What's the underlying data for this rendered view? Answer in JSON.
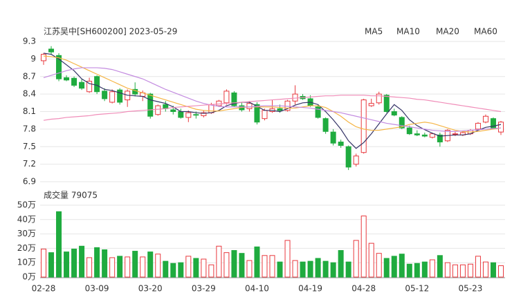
{
  "chart_data": [
    {
      "type": "candlestick",
      "title": "江苏吴中[SH600200] 2023-05-29",
      "categories": [
        "02-28",
        null,
        null,
        null,
        null,
        null,
        null,
        "03-09",
        null,
        null,
        null,
        null,
        null,
        null,
        "03-20",
        null,
        null,
        null,
        null,
        null,
        null,
        "03-29",
        null,
        null,
        null,
        null,
        null,
        null,
        "04-10",
        null,
        null,
        null,
        null,
        null,
        null,
        "04-19",
        null,
        null,
        null,
        null,
        null,
        null,
        "04-28",
        null,
        null,
        null,
        null,
        null,
        null,
        "05-12",
        null,
        null,
        null,
        null,
        null,
        null,
        "05-23",
        null,
        null,
        null,
        null
      ],
      "open": [
        8.97,
        9.17,
        9.06,
        8.68,
        8.67,
        8.6,
        8.44,
        8.7,
        8.45,
        8.26,
        8.47,
        8.3,
        8.48,
        8.36,
        8.4,
        8.05,
        8.22,
        8.13,
        8.1,
        8.0,
        8.05,
        8.03,
        8.08,
        8.2,
        8.25,
        8.42,
        8.2,
        8.15,
        8.22,
        7.98,
        8.1,
        8.15,
        8.12,
        8.28,
        8.36,
        8.32,
        8.18,
        7.98,
        7.75,
        7.58,
        7.5,
        7.2,
        7.4,
        8.2,
        8.25,
        8.38,
        8.1,
        8.0,
        7.82,
        7.72,
        7.7,
        7.66,
        7.7,
        7.6,
        7.72,
        7.7,
        7.72,
        7.8,
        7.92,
        7.98,
        7.75
      ],
      "high": [
        9.1,
        9.22,
        9.1,
        8.72,
        8.7,
        8.65,
        8.68,
        8.72,
        8.5,
        8.48,
        8.5,
        8.48,
        8.6,
        8.46,
        8.42,
        8.22,
        8.28,
        8.2,
        8.15,
        8.12,
        8.1,
        8.12,
        8.25,
        8.3,
        8.48,
        8.45,
        8.26,
        8.28,
        8.26,
        8.15,
        8.3,
        8.22,
        8.3,
        8.55,
        8.4,
        8.38,
        8.22,
        8.0,
        7.8,
        7.62,
        7.52,
        7.38,
        8.32,
        8.32,
        8.44,
        8.4,
        8.15,
        8.02,
        7.86,
        7.78,
        7.74,
        7.74,
        7.74,
        7.8,
        7.76,
        7.76,
        7.8,
        7.92,
        8.05,
        8.0,
        7.94
      ],
      "low": [
        8.9,
        9.08,
        8.62,
        8.62,
        8.52,
        8.47,
        8.42,
        8.4,
        8.28,
        8.24,
        8.22,
        8.18,
        8.36,
        8.28,
        7.98,
        8.03,
        8.1,
        8.05,
        7.98,
        7.92,
        7.98,
        8.0,
        8.06,
        8.18,
        8.22,
        8.18,
        8.1,
        8.1,
        7.88,
        7.95,
        8.08,
        8.08,
        8.1,
        8.22,
        8.3,
        8.18,
        7.98,
        7.72,
        7.52,
        7.48,
        7.1,
        7.16,
        7.38,
        8.18,
        8.22,
        8.08,
        8.02,
        7.8,
        7.7,
        7.68,
        7.66,
        7.64,
        7.5,
        7.58,
        7.68,
        7.68,
        7.7,
        7.78,
        7.9,
        7.8,
        7.7
      ],
      "close": [
        9.08,
        9.12,
        8.66,
        8.64,
        8.55,
        8.5,
        8.62,
        8.44,
        8.32,
        8.44,
        8.26,
        8.45,
        8.4,
        8.42,
        8.02,
        8.2,
        8.15,
        8.1,
        8.0,
        8.08,
        8.04,
        8.08,
        8.22,
        8.28,
        8.45,
        8.2,
        8.13,
        8.24,
        7.92,
        8.12,
        8.15,
        8.12,
        8.28,
        8.4,
        8.32,
        8.2,
        8.0,
        7.76,
        7.56,
        7.52,
        7.15,
        7.34,
        8.3,
        8.24,
        8.4,
        8.1,
        8.04,
        7.82,
        7.72,
        7.7,
        7.68,
        7.72,
        7.58,
        7.78,
        7.72,
        7.74,
        7.78,
        7.9,
        8.02,
        7.82,
        7.92
      ],
      "up_color": "#e8383d",
      "down_color": "#1fab3f",
      "series": [
        {
          "name": "MA5",
          "color": "#333366",
          "values": [
            9.1,
            9.08,
            9.0,
            8.9,
            8.8,
            8.66,
            8.58,
            8.55,
            8.48,
            8.46,
            8.42,
            8.38,
            8.37,
            8.36,
            8.3,
            8.27,
            8.24,
            8.18,
            8.1,
            8.1,
            8.08,
            8.07,
            8.08,
            8.12,
            8.2,
            8.24,
            8.26,
            8.26,
            8.19,
            8.12,
            8.12,
            8.1,
            8.15,
            8.21,
            8.25,
            8.26,
            8.22,
            8.1,
            7.96,
            7.8,
            7.6,
            7.47,
            7.57,
            7.72,
            7.89,
            8.06,
            8.22,
            8.12,
            7.96,
            7.86,
            7.79,
            7.73,
            7.68,
            7.69,
            7.7,
            7.7,
            7.72,
            7.78,
            7.83,
            7.85,
            7.88
          ]
        },
        {
          "name": "MA10",
          "color": "#f5b545",
          "values": [
            9.05,
            9.04,
            9.02,
            8.98,
            8.92,
            8.86,
            8.8,
            8.74,
            8.68,
            8.62,
            8.56,
            8.5,
            8.46,
            8.42,
            8.38,
            8.34,
            8.3,
            8.26,
            8.22,
            8.18,
            8.14,
            8.12,
            8.11,
            8.11,
            8.13,
            8.15,
            8.17,
            8.18,
            8.18,
            8.18,
            8.18,
            8.17,
            8.16,
            8.16,
            8.18,
            8.2,
            8.2,
            8.17,
            8.1,
            8.02,
            7.92,
            7.84,
            7.8,
            7.78,
            7.78,
            7.8,
            7.82,
            7.84,
            7.88,
            7.9,
            7.92,
            7.9,
            7.86,
            7.82,
            7.78,
            7.76,
            7.75,
            7.76,
            7.78,
            7.8,
            7.82
          ]
        },
        {
          "name": "MA20",
          "color": "#c38be0",
          "values": [
            8.68,
            8.72,
            8.76,
            8.8,
            8.83,
            8.85,
            8.85,
            8.85,
            8.84,
            8.82,
            8.78,
            8.74,
            8.7,
            8.66,
            8.6,
            8.54,
            8.48,
            8.43,
            8.38,
            8.33,
            8.28,
            8.24,
            8.21,
            8.19,
            8.18,
            8.18,
            8.18,
            8.18,
            8.19,
            8.2,
            8.2,
            8.2,
            8.19,
            8.18,
            8.17,
            8.16,
            8.14,
            8.12,
            8.1,
            8.08,
            8.05,
            8.02,
            7.99,
            7.96,
            7.93,
            7.9,
            7.88,
            7.86,
            7.84,
            7.82,
            7.8,
            7.78,
            7.77,
            7.76,
            7.76,
            7.77,
            7.78,
            7.79,
            7.8,
            7.81,
            7.82
          ]
        },
        {
          "name": "MA60",
          "color": "#f08cb8",
          "values": [
            7.95,
            7.97,
            7.98,
            8.0,
            8.01,
            8.02,
            8.03,
            8.05,
            8.06,
            8.07,
            8.08,
            8.1,
            8.11,
            8.12,
            8.13,
            8.14,
            8.15,
            8.17,
            8.18,
            8.19,
            8.2,
            8.21,
            8.22,
            8.23,
            8.24,
            8.25,
            8.26,
            8.27,
            8.28,
            8.29,
            8.3,
            8.31,
            8.32,
            8.33,
            8.34,
            8.35,
            8.36,
            8.37,
            8.37,
            8.38,
            8.38,
            8.38,
            8.38,
            8.37,
            8.37,
            8.36,
            8.35,
            8.34,
            8.33,
            8.31,
            8.3,
            8.28,
            8.26,
            8.24,
            8.22,
            8.2,
            8.18,
            8.16,
            8.14,
            8.12,
            8.1
          ]
        }
      ],
      "ylim": [
        6.9,
        9.3
      ],
      "yticks": [
        9.3,
        9,
        8.7,
        8.4,
        8.1,
        7.8,
        7.5,
        7.2,
        6.9
      ],
      "grid": true
    },
    {
      "type": "bar",
      "title": "成交量 79075",
      "values": [
        19.5,
        17,
        45.5,
        17.5,
        19.5,
        21.5,
        13.5,
        20.5,
        19,
        13.5,
        14.5,
        14,
        18,
        14,
        17.5,
        16,
        11,
        9.5,
        10,
        14.5,
        13,
        12.5,
        8.5,
        21.5,
        17,
        18.5,
        16.5,
        11.5,
        21,
        15,
        15,
        10.5,
        25.5,
        11.5,
        10.5,
        11,
        13,
        11,
        10,
        18.5,
        10.5,
        25.5,
        42.5,
        23.5,
        16.5,
        13,
        14.5,
        16,
        9,
        9.5,
        10.5,
        12,
        15,
        10,
        8.5,
        8.5,
        9,
        14.5,
        10.5,
        10,
        7.9075
      ],
      "ylim": [
        0,
        50
      ],
      "yticks": [
        {
          "value": 50,
          "label": "50万"
        },
        {
          "value": 40,
          "label": "40万"
        },
        {
          "value": 30,
          "label": "30万"
        },
        {
          "value": 20,
          "label": "20万"
        },
        {
          "value": 10,
          "label": "10万"
        },
        {
          "value": 0,
          "label": "0万"
        }
      ],
      "grid": true
    }
  ]
}
